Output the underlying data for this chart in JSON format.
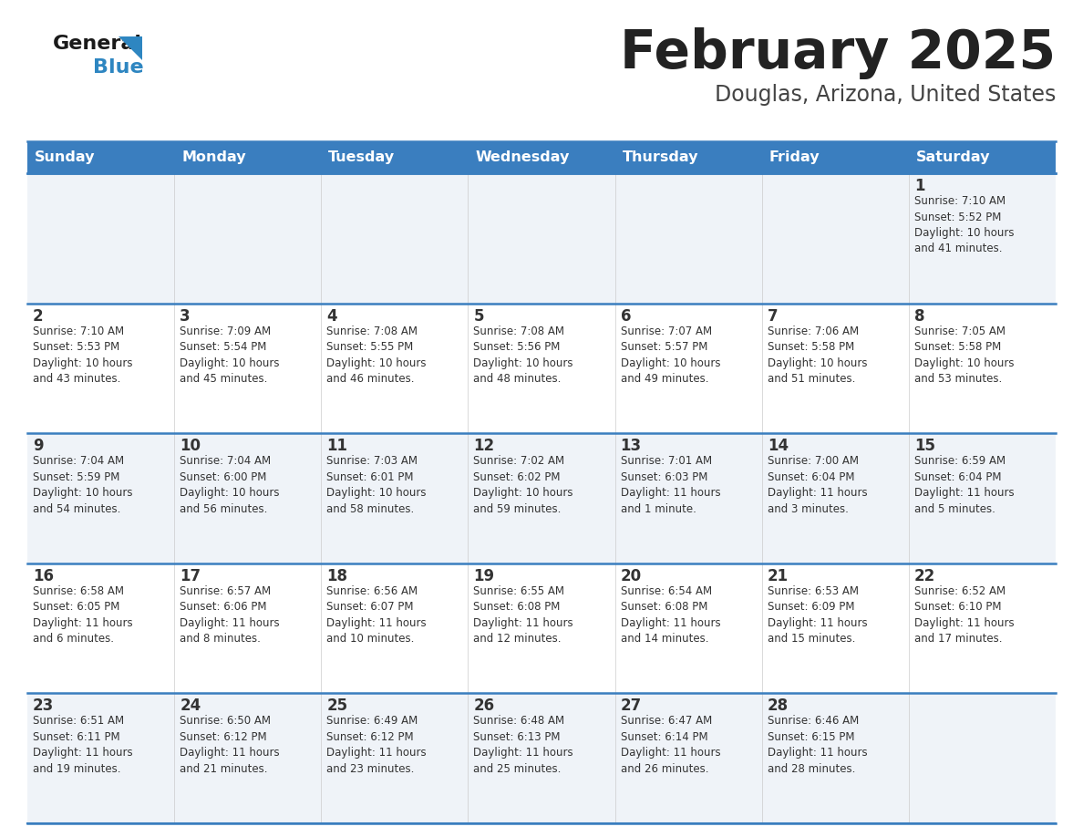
{
  "title": "February 2025",
  "subtitle": "Douglas, Arizona, United States",
  "header_color": "#3a7ebf",
  "header_text_color": "#ffffff",
  "day_names": [
    "Sunday",
    "Monday",
    "Tuesday",
    "Wednesday",
    "Thursday",
    "Friday",
    "Saturday"
  ],
  "row_bg_even": "#eff3f8",
  "row_bg_odd": "#ffffff",
  "cell_border_color": "#3a7ebf",
  "text_color": "#333333",
  "calendar_data": [
    [
      {
        "day": "",
        "info": ""
      },
      {
        "day": "",
        "info": ""
      },
      {
        "day": "",
        "info": ""
      },
      {
        "day": "",
        "info": ""
      },
      {
        "day": "",
        "info": ""
      },
      {
        "day": "",
        "info": ""
      },
      {
        "day": "1",
        "info": "Sunrise: 7:10 AM\nSunset: 5:52 PM\nDaylight: 10 hours\nand 41 minutes."
      }
    ],
    [
      {
        "day": "2",
        "info": "Sunrise: 7:10 AM\nSunset: 5:53 PM\nDaylight: 10 hours\nand 43 minutes."
      },
      {
        "day": "3",
        "info": "Sunrise: 7:09 AM\nSunset: 5:54 PM\nDaylight: 10 hours\nand 45 minutes."
      },
      {
        "day": "4",
        "info": "Sunrise: 7:08 AM\nSunset: 5:55 PM\nDaylight: 10 hours\nand 46 minutes."
      },
      {
        "day": "5",
        "info": "Sunrise: 7:08 AM\nSunset: 5:56 PM\nDaylight: 10 hours\nand 48 minutes."
      },
      {
        "day": "6",
        "info": "Sunrise: 7:07 AM\nSunset: 5:57 PM\nDaylight: 10 hours\nand 49 minutes."
      },
      {
        "day": "7",
        "info": "Sunrise: 7:06 AM\nSunset: 5:58 PM\nDaylight: 10 hours\nand 51 minutes."
      },
      {
        "day": "8",
        "info": "Sunrise: 7:05 AM\nSunset: 5:58 PM\nDaylight: 10 hours\nand 53 minutes."
      }
    ],
    [
      {
        "day": "9",
        "info": "Sunrise: 7:04 AM\nSunset: 5:59 PM\nDaylight: 10 hours\nand 54 minutes."
      },
      {
        "day": "10",
        "info": "Sunrise: 7:04 AM\nSunset: 6:00 PM\nDaylight: 10 hours\nand 56 minutes."
      },
      {
        "day": "11",
        "info": "Sunrise: 7:03 AM\nSunset: 6:01 PM\nDaylight: 10 hours\nand 58 minutes."
      },
      {
        "day": "12",
        "info": "Sunrise: 7:02 AM\nSunset: 6:02 PM\nDaylight: 10 hours\nand 59 minutes."
      },
      {
        "day": "13",
        "info": "Sunrise: 7:01 AM\nSunset: 6:03 PM\nDaylight: 11 hours\nand 1 minute."
      },
      {
        "day": "14",
        "info": "Sunrise: 7:00 AM\nSunset: 6:04 PM\nDaylight: 11 hours\nand 3 minutes."
      },
      {
        "day": "15",
        "info": "Sunrise: 6:59 AM\nSunset: 6:04 PM\nDaylight: 11 hours\nand 5 minutes."
      }
    ],
    [
      {
        "day": "16",
        "info": "Sunrise: 6:58 AM\nSunset: 6:05 PM\nDaylight: 11 hours\nand 6 minutes."
      },
      {
        "day": "17",
        "info": "Sunrise: 6:57 AM\nSunset: 6:06 PM\nDaylight: 11 hours\nand 8 minutes."
      },
      {
        "day": "18",
        "info": "Sunrise: 6:56 AM\nSunset: 6:07 PM\nDaylight: 11 hours\nand 10 minutes."
      },
      {
        "day": "19",
        "info": "Sunrise: 6:55 AM\nSunset: 6:08 PM\nDaylight: 11 hours\nand 12 minutes."
      },
      {
        "day": "20",
        "info": "Sunrise: 6:54 AM\nSunset: 6:08 PM\nDaylight: 11 hours\nand 14 minutes."
      },
      {
        "day": "21",
        "info": "Sunrise: 6:53 AM\nSunset: 6:09 PM\nDaylight: 11 hours\nand 15 minutes."
      },
      {
        "day": "22",
        "info": "Sunrise: 6:52 AM\nSunset: 6:10 PM\nDaylight: 11 hours\nand 17 minutes."
      }
    ],
    [
      {
        "day": "23",
        "info": "Sunrise: 6:51 AM\nSunset: 6:11 PM\nDaylight: 11 hours\nand 19 minutes."
      },
      {
        "day": "24",
        "info": "Sunrise: 6:50 AM\nSunset: 6:12 PM\nDaylight: 11 hours\nand 21 minutes."
      },
      {
        "day": "25",
        "info": "Sunrise: 6:49 AM\nSunset: 6:12 PM\nDaylight: 11 hours\nand 23 minutes."
      },
      {
        "day": "26",
        "info": "Sunrise: 6:48 AM\nSunset: 6:13 PM\nDaylight: 11 hours\nand 25 minutes."
      },
      {
        "day": "27",
        "info": "Sunrise: 6:47 AM\nSunset: 6:14 PM\nDaylight: 11 hours\nand 26 minutes."
      },
      {
        "day": "28",
        "info": "Sunrise: 6:46 AM\nSunset: 6:15 PM\nDaylight: 11 hours\nand 28 minutes."
      },
      {
        "day": "",
        "info": ""
      }
    ]
  ],
  "logo_color_general": "#1a1a1a",
  "logo_color_blue": "#2e86c1",
  "logo_triangle_color": "#2e86c1"
}
